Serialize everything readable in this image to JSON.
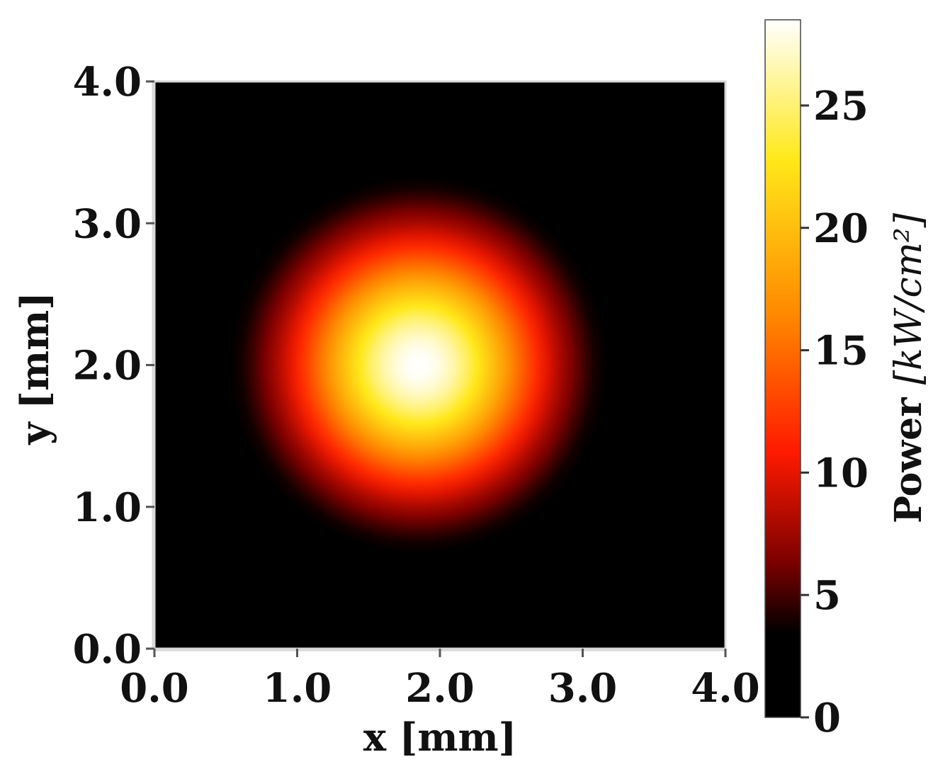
{
  "chart_data": {
    "type": "heatmap",
    "title": "",
    "xlabel": "x [mm]",
    "ylabel": "y [mm]",
    "xlim": [
      0.0,
      4.0
    ],
    "ylim": [
      0.0,
      4.0
    ],
    "x_ticks": [
      "0.0",
      "1.0",
      "2.0",
      "3.0",
      "4.0"
    ],
    "y_ticks": [
      "0.0",
      "1.0",
      "2.0",
      "3.0",
      "4.0"
    ],
    "grid": false,
    "colormap": "hot",
    "colorbar": {
      "label_prefix": "Power ",
      "label_unit": "[kW/cm²]",
      "range": [
        0,
        28.5
      ],
      "ticks": [
        "0",
        "5",
        "10",
        "15",
        "20",
        "25"
      ]
    },
    "distribution": {
      "shape": "gaussian",
      "center_x": 1.85,
      "center_y": 2.0,
      "sigma": 0.62,
      "peak": 28.5
    },
    "colors": {
      "black": "#000000",
      "dark_red": "#7a0000",
      "red": "#ff1a00",
      "orange": "#ff8a00",
      "yellow": "#ffe81a",
      "white": "#ffffff"
    }
  }
}
